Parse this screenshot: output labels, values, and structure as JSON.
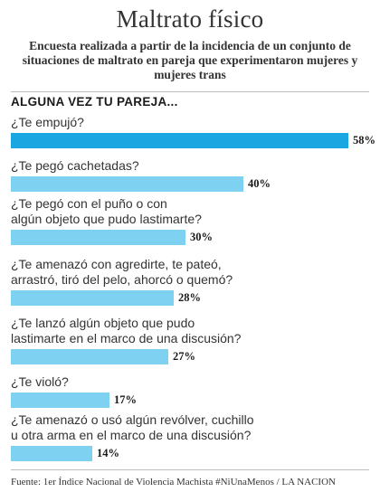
{
  "header": {
    "title": "Maltrato físico",
    "subtitle": "Encuesta realizada a partir de la incidencia de un conjunto de situaciones de maltrato en pareja que experimentaron mujeres y mujeres trans"
  },
  "section_heading": "ALGUNA VEZ TU PAREJA...",
  "source": "Fuente: 1er Índice Nacional de Violencia Machista #NiUnaMenos / LA NACION",
  "colors": {
    "highlight_bar": "#1aa6e0",
    "bar": "#7fd1f2"
  },
  "chart_data": {
    "type": "bar",
    "orientation": "horizontal",
    "title": "Maltrato físico",
    "categories": [
      "¿Te empujó?",
      "¿Te pegó cachetadas?",
      "¿Te pegó con el puño o con algún objeto que pudo lastimarte?",
      "¿Te amenazó con agredirte, te pateó, arrastró, tiró del pelo, ahorcó o quemó?",
      "¿Te lanzó algún objeto que pudo lastimarte en el marco de una discusión?",
      "¿Te violó?",
      "¿Te amenazó o usó algún revólver, cuchillo u otra arma en el marco de una discusión?"
    ],
    "values": [
      58,
      40,
      30,
      28,
      27,
      17,
      14
    ],
    "value_labels": [
      "58%",
      "40%",
      "30%",
      "28%",
      "27%",
      "17%",
      "14%"
    ],
    "unit": "%",
    "xlim": [
      0,
      58
    ],
    "highlighted_index": 0
  }
}
